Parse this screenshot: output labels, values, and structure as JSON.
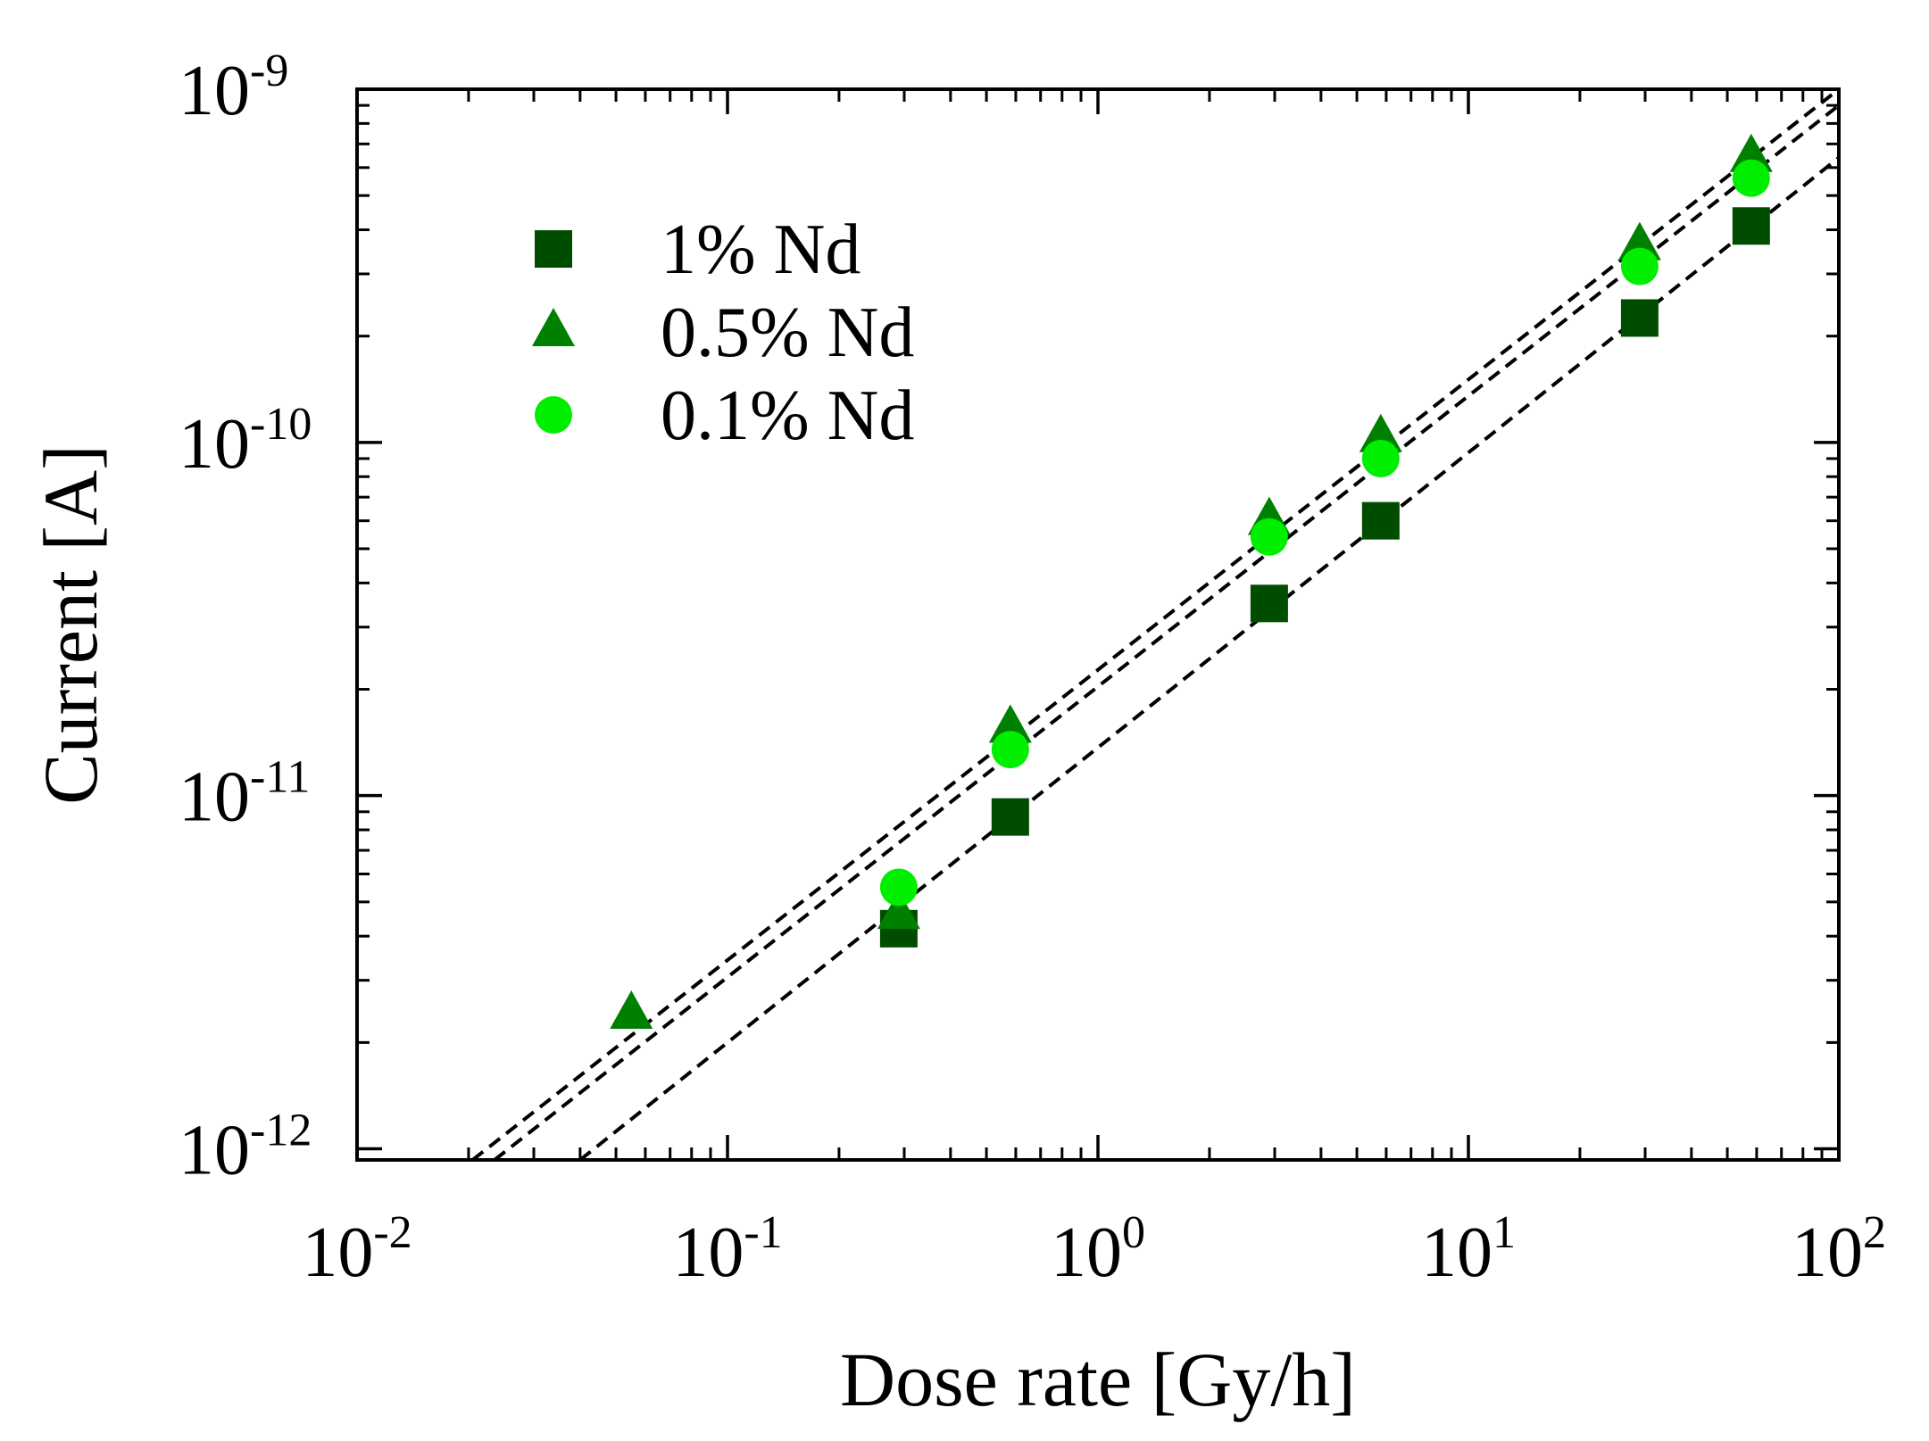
{
  "chart_data": {
    "type": "scatter",
    "title": "",
    "xlabel": "Dose rate [Gy/h]",
    "ylabel": "Current [A]",
    "xscale": "log",
    "yscale": "log",
    "xlim": [
      0.01,
      100
    ],
    "ylim": [
      9.3e-13,
      1e-09
    ],
    "x_ticks": [
      {
        "value": 0.01,
        "base": "10",
        "exp": "-2"
      },
      {
        "value": 0.1,
        "base": "10",
        "exp": "-1"
      },
      {
        "value": 1,
        "base": "10",
        "exp": "0"
      },
      {
        "value": 10,
        "base": "10",
        "exp": "1"
      },
      {
        "value": 100,
        "base": "10",
        "exp": "2"
      }
    ],
    "y_ticks": [
      {
        "value": 1e-12,
        "base": "10",
        "exp": "-12"
      },
      {
        "value": 1e-11,
        "base": "10",
        "exp": "-11"
      },
      {
        "value": 1e-10,
        "base": "10",
        "exp": "-10"
      },
      {
        "value": 1e-09,
        "base": "10",
        "exp": "-9"
      }
    ],
    "legend_position": "top-left",
    "series": [
      {
        "name": "1% Nd",
        "marker": "square",
        "color": "#004d00",
        "x": [
          0.29,
          0.58,
          2.9,
          5.8,
          29,
          58
        ],
        "y": [
          4.2e-12,
          8.7e-12,
          3.5e-11,
          6e-11,
          2.25e-10,
          4.1e-10
        ]
      },
      {
        "name": "0.5% Nd",
        "marker": "triangle",
        "color": "#008000",
        "x": [
          0.055,
          0.29,
          0.58,
          2.9,
          5.8,
          29,
          58
        ],
        "y": [
          2.4e-12,
          4.6e-12,
          1.55e-11,
          6e-11,
          1.03e-10,
          3.6e-10,
          6.4e-10
        ]
      },
      {
        "name": "0.1% Nd",
        "marker": "circle",
        "color": "#00ee00",
        "x": [
          0.29,
          0.58,
          2.9,
          5.8,
          29,
          58
        ],
        "y": [
          5.5e-12,
          1.35e-11,
          5.4e-11,
          9e-11,
          3.15e-10,
          5.6e-10
        ]
      }
    ],
    "fit_lines": [
      {
        "style": "dashed",
        "color": "#000000",
        "x": [
          0.0235,
          100
        ],
        "y": [
          9.3e-13,
          9e-10
        ]
      },
      {
        "style": "dashed",
        "color": "#000000",
        "x": [
          0.0205,
          100
        ],
        "y": [
          9.3e-13,
          1e-09
        ]
      },
      {
        "style": "dashed",
        "color": "#000000",
        "x": [
          0.04,
          100
        ],
        "y": [
          9.3e-13,
          6.4e-10
        ]
      }
    ]
  }
}
